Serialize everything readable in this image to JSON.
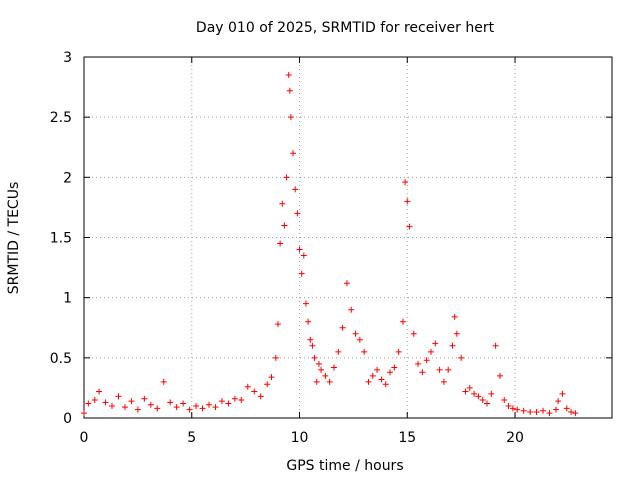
{
  "chart_data": {
    "type": "scatter",
    "title": "Day 010 of 2025, SRMTID for receiver hert",
    "xlabel": "GPS time / hours",
    "ylabel": "SRMTID / TECUs",
    "xlim": [
      0,
      24.5
    ],
    "ylim": [
      0,
      3
    ],
    "xticks": [
      0,
      5,
      10,
      15,
      20
    ],
    "xtick_labels": [
      "0",
      "5",
      "10",
      "15",
      "20"
    ],
    "yticks": [
      0,
      0.5,
      1,
      1.5,
      2,
      2.5,
      3
    ],
    "ytick_labels": [
      "0",
      "0.5",
      "1",
      "1.5",
      "2",
      "2.5",
      "3"
    ],
    "grid": true,
    "marker": "+",
    "color": "#ff0000",
    "series": [
      {
        "name": "SRMTID",
        "x": [
          0.0,
          0.2,
          0.5,
          0.7,
          1.0,
          1.3,
          1.6,
          1.9,
          2.2,
          2.5,
          2.8,
          3.1,
          3.4,
          3.7,
          4.0,
          4.3,
          4.6,
          4.9,
          5.2,
          5.5,
          5.8,
          6.1,
          6.4,
          6.7,
          7.0,
          7.3,
          7.6,
          7.9,
          8.2,
          8.5,
          8.7,
          8.9,
          9.0,
          9.1,
          9.2,
          9.3,
          9.4,
          9.5,
          9.55,
          9.6,
          9.7,
          9.8,
          9.9,
          10.0,
          10.1,
          10.2,
          10.3,
          10.4,
          10.5,
          10.6,
          10.7,
          10.8,
          10.9,
          11.0,
          11.2,
          11.4,
          11.6,
          11.8,
          12.0,
          12.2,
          12.4,
          12.6,
          12.8,
          13.0,
          13.2,
          13.4,
          13.6,
          13.8,
          14.0,
          14.2,
          14.4,
          14.6,
          14.8,
          14.9,
          15.0,
          15.1,
          15.3,
          15.5,
          15.7,
          15.9,
          16.1,
          16.3,
          16.5,
          16.7,
          16.9,
          17.1,
          17.2,
          17.3,
          17.5,
          17.7,
          17.9,
          18.1,
          18.3,
          18.5,
          18.7,
          18.9,
          19.1,
          19.3,
          19.5,
          19.7,
          19.9,
          20.1,
          20.4,
          20.7,
          21.0,
          21.3,
          21.6,
          21.9,
          22.0,
          22.2,
          22.4,
          22.6,
          22.8
        ],
        "y": [
          0.04,
          0.12,
          0.15,
          0.22,
          0.13,
          0.1,
          0.18,
          0.09,
          0.14,
          0.07,
          0.16,
          0.11,
          0.08,
          0.3,
          0.13,
          0.09,
          0.12,
          0.07,
          0.1,
          0.08,
          0.11,
          0.09,
          0.14,
          0.12,
          0.16,
          0.15,
          0.26,
          0.22,
          0.18,
          0.28,
          0.34,
          0.5,
          0.78,
          1.45,
          1.78,
          1.6,
          2.0,
          2.85,
          2.72,
          2.5,
          2.2,
          1.9,
          1.7,
          1.4,
          1.2,
          1.35,
          0.95,
          0.8,
          0.65,
          0.6,
          0.5,
          0.3,
          0.45,
          0.4,
          0.35,
          0.3,
          0.42,
          0.55,
          0.75,
          1.12,
          0.9,
          0.7,
          0.65,
          0.55,
          0.3,
          0.35,
          0.4,
          0.32,
          0.28,
          0.38,
          0.42,
          0.55,
          0.8,
          1.96,
          1.8,
          1.59,
          0.7,
          0.45,
          0.38,
          0.48,
          0.55,
          0.62,
          0.4,
          0.3,
          0.4,
          0.6,
          0.84,
          0.7,
          0.5,
          0.22,
          0.25,
          0.2,
          0.18,
          0.15,
          0.12,
          0.2,
          0.6,
          0.35,
          0.15,
          0.1,
          0.08,
          0.07,
          0.06,
          0.05,
          0.05,
          0.06,
          0.04,
          0.07,
          0.14,
          0.2,
          0.08,
          0.05,
          0.04
        ]
      }
    ]
  }
}
